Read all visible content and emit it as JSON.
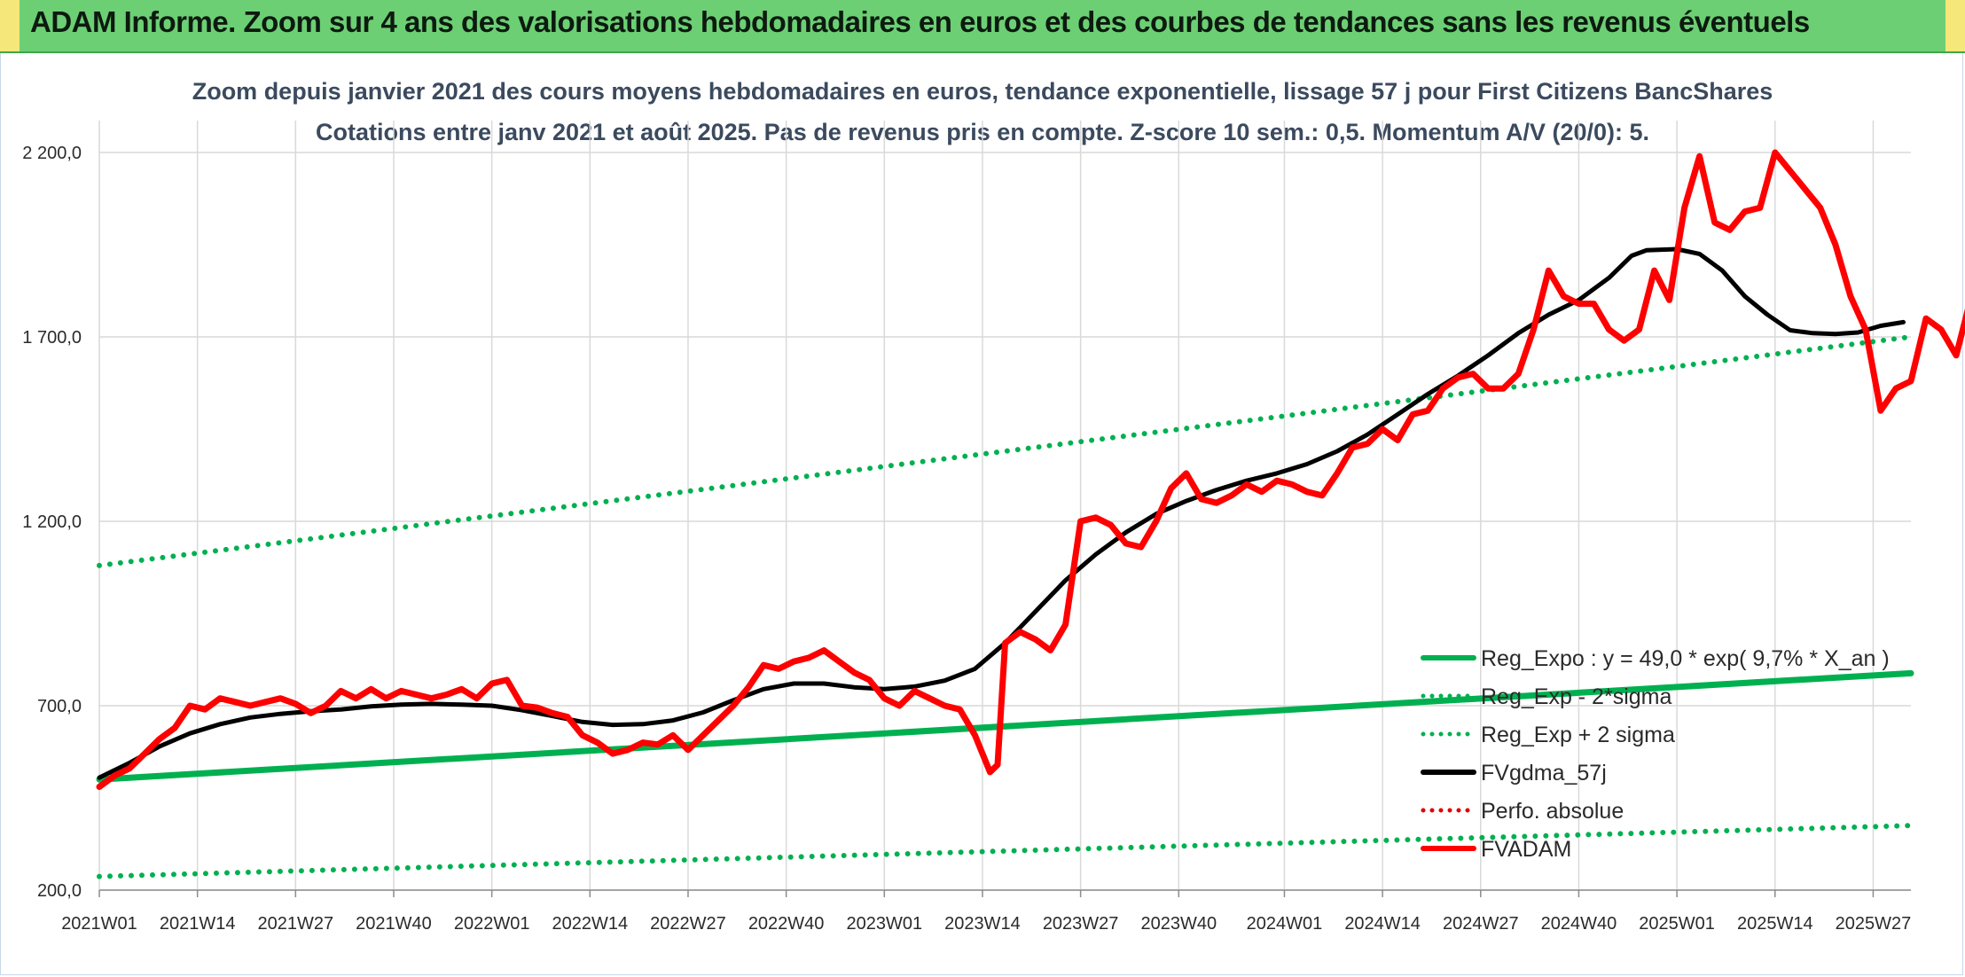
{
  "header": {
    "title": "ADAM Informe. Zoom sur 4 ans des valorisations hebdomadaires en euros et des courbes de tendances sans les revenus éventuels"
  },
  "chart_data": {
    "type": "line",
    "title": "Zoom depuis janvier 2021 des cours moyens hebdomadaires en euros, tendance exponentielle, lissage 57 j pour First Citizens BancShares",
    "subtitle": "Cotations entre janv 2021 et août 2025. Pas de revenus pris en compte. Z-score 10 sem.: 0,5. Momentum A/V (20/0): 5.",
    "xlabel": "",
    "ylabel": "",
    "ylim": [
      200,
      2200
    ],
    "y_ticks": [
      200,
      700,
      1200,
      1700,
      2200
    ],
    "y_tick_labels": [
      "200,0",
      "700,0",
      "1 200,0",
      "1 700,0",
      "2 200,0"
    ],
    "x_ticks": [
      0,
      13,
      26,
      39,
      52,
      65,
      78,
      91,
      104,
      117,
      130,
      143,
      157,
      170,
      183,
      196,
      209,
      222,
      235
    ],
    "x_tick_labels": [
      "2021W01",
      "2021W14",
      "2021W27",
      "2021W40",
      "2022W01",
      "2022W14",
      "2022W27",
      "2022W40",
      "2023W01",
      "2023W14",
      "2023W27",
      "2023W40",
      "2024W01",
      "2024W14",
      "2024W27",
      "2024W40",
      "2025W01",
      "2025W14",
      "2025W27"
    ],
    "xlim": [
      0,
      240
    ],
    "grid": "vertical and horizontal",
    "legend_position": "bottom-right",
    "series": [
      {
        "name": "Reg_Expo : y = 49,0 * exp( 9,7% *  X_an )",
        "color": "#00b050",
        "style": "solid",
        "points": [
          [
            0,
            500
          ],
          [
            240,
            788
          ]
        ]
      },
      {
        "name": "Reg_Exp - 2*sigma",
        "color": "#00b050",
        "style": "dotted",
        "points": [
          [
            0,
            237
          ],
          [
            240,
            375
          ]
        ]
      },
      {
        "name": "Reg_Exp + 2 sigma",
        "color": "#00b050",
        "style": "dotted",
        "points": [
          [
            0,
            1080
          ],
          [
            240,
            1700
          ]
        ]
      },
      {
        "name": "FVgdma_57j",
        "color": "#000000",
        "style": "solid",
        "points": [
          [
            0,
            505
          ],
          [
            4,
            545
          ],
          [
            8,
            590
          ],
          [
            12,
            625
          ],
          [
            16,
            650
          ],
          [
            20,
            668
          ],
          [
            24,
            678
          ],
          [
            28,
            685
          ],
          [
            32,
            690
          ],
          [
            36,
            698
          ],
          [
            40,
            703
          ],
          [
            44,
            705
          ],
          [
            48,
            703
          ],
          [
            52,
            700
          ],
          [
            56,
            688
          ],
          [
            60,
            672
          ],
          [
            64,
            656
          ],
          [
            68,
            648
          ],
          [
            72,
            650
          ],
          [
            76,
            660
          ],
          [
            80,
            682
          ],
          [
            84,
            715
          ],
          [
            88,
            745
          ],
          [
            92,
            760
          ],
          [
            96,
            760
          ],
          [
            100,
            750
          ],
          [
            104,
            745
          ],
          [
            108,
            752
          ],
          [
            112,
            768
          ],
          [
            116,
            800
          ],
          [
            120,
            870
          ],
          [
            124,
            955
          ],
          [
            128,
            1040
          ],
          [
            132,
            1110
          ],
          [
            136,
            1170
          ],
          [
            140,
            1220
          ],
          [
            144,
            1255
          ],
          [
            148,
            1285
          ],
          [
            152,
            1310
          ],
          [
            156,
            1330
          ],
          [
            160,
            1355
          ],
          [
            164,
            1390
          ],
          [
            168,
            1435
          ],
          [
            172,
            1490
          ],
          [
            176,
            1545
          ],
          [
            180,
            1595
          ],
          [
            184,
            1650
          ],
          [
            188,
            1710
          ],
          [
            192,
            1760
          ],
          [
            196,
            1800
          ],
          [
            200,
            1860
          ],
          [
            203,
            1920
          ],
          [
            205,
            1935
          ],
          [
            209,
            1938
          ],
          [
            212,
            1925
          ],
          [
            215,
            1880
          ],
          [
            218,
            1810
          ],
          [
            221,
            1760
          ],
          [
            224,
            1718
          ],
          [
            227,
            1710
          ],
          [
            230,
            1708
          ],
          [
            233,
            1712
          ],
          [
            236,
            1730
          ],
          [
            239,
            1740
          ]
        ]
      },
      {
        "name": "Perfo. absolue",
        "color": "#e00000",
        "style": "dotted",
        "points": []
      },
      {
        "name": "FVADAM",
        "color": "#ff0000",
        "style": "solid",
        "points": [
          [
            0,
            480
          ],
          [
            2,
            510
          ],
          [
            4,
            530
          ],
          [
            6,
            570
          ],
          [
            8,
            610
          ],
          [
            10,
            640
          ],
          [
            12,
            700
          ],
          [
            14,
            690
          ],
          [
            16,
            720
          ],
          [
            18,
            710
          ],
          [
            20,
            700
          ],
          [
            22,
            710
          ],
          [
            24,
            720
          ],
          [
            26,
            705
          ],
          [
            28,
            680
          ],
          [
            30,
            700
          ],
          [
            32,
            740
          ],
          [
            34,
            720
          ],
          [
            36,
            745
          ],
          [
            38,
            720
          ],
          [
            40,
            740
          ],
          [
            42,
            730
          ],
          [
            44,
            720
          ],
          [
            46,
            730
          ],
          [
            48,
            745
          ],
          [
            50,
            720
          ],
          [
            52,
            760
          ],
          [
            54,
            770
          ],
          [
            56,
            700
          ],
          [
            58,
            695
          ],
          [
            60,
            680
          ],
          [
            62,
            670
          ],
          [
            64,
            620
          ],
          [
            66,
            600
          ],
          [
            68,
            570
          ],
          [
            70,
            580
          ],
          [
            72,
            600
          ],
          [
            74,
            595
          ],
          [
            76,
            620
          ],
          [
            78,
            580
          ],
          [
            80,
            620
          ],
          [
            82,
            660
          ],
          [
            84,
            700
          ],
          [
            86,
            750
          ],
          [
            88,
            810
          ],
          [
            90,
            800
          ],
          [
            92,
            820
          ],
          [
            94,
            830
          ],
          [
            96,
            850
          ],
          [
            98,
            820
          ],
          [
            100,
            790
          ],
          [
            102,
            770
          ],
          [
            104,
            720
          ],
          [
            106,
            700
          ],
          [
            108,
            740
          ],
          [
            110,
            720
          ],
          [
            112,
            700
          ],
          [
            114,
            690
          ],
          [
            116,
            620
          ],
          [
            118,
            520
          ],
          [
            119,
            540
          ],
          [
            120,
            870
          ],
          [
            122,
            900
          ],
          [
            124,
            880
          ],
          [
            126,
            850
          ],
          [
            128,
            920
          ],
          [
            130,
            1200
          ],
          [
            132,
            1210
          ],
          [
            134,
            1190
          ],
          [
            136,
            1140
          ],
          [
            138,
            1130
          ],
          [
            140,
            1200
          ],
          [
            142,
            1290
          ],
          [
            144,
            1330
          ],
          [
            146,
            1260
          ],
          [
            148,
            1250
          ],
          [
            150,
            1270
          ],
          [
            152,
            1300
          ],
          [
            154,
            1280
          ],
          [
            156,
            1310
          ],
          [
            158,
            1300
          ],
          [
            160,
            1280
          ],
          [
            162,
            1270
          ],
          [
            164,
            1330
          ],
          [
            166,
            1400
          ],
          [
            168,
            1410
          ],
          [
            170,
            1450
          ],
          [
            172,
            1420
          ],
          [
            174,
            1490
          ],
          [
            176,
            1500
          ],
          [
            178,
            1560
          ],
          [
            180,
            1590
          ],
          [
            182,
            1600
          ],
          [
            184,
            1560
          ],
          [
            186,
            1560
          ],
          [
            188,
            1600
          ],
          [
            190,
            1720
          ],
          [
            192,
            1880
          ],
          [
            194,
            1810
          ],
          [
            196,
            1790
          ],
          [
            198,
            1790
          ],
          [
            200,
            1720
          ],
          [
            202,
            1690
          ],
          [
            204,
            1720
          ],
          [
            206,
            1880
          ],
          [
            208,
            1800
          ],
          [
            210,
            2050
          ],
          [
            212,
            2190
          ],
          [
            214,
            2010
          ],
          [
            216,
            1990
          ],
          [
            218,
            2040
          ],
          [
            220,
            2050
          ],
          [
            222,
            2200
          ],
          [
            224,
            2150
          ],
          [
            226,
            2100
          ],
          [
            228,
            2050
          ],
          [
            230,
            1950
          ],
          [
            232,
            1810
          ],
          [
            234,
            1720
          ],
          [
            236,
            1500
          ],
          [
            238,
            1560
          ],
          [
            240,
            1580
          ],
          [
            242,
            1750
          ],
          [
            244,
            1720
          ],
          [
            246,
            1650
          ],
          [
            248,
            1810
          ],
          [
            250,
            1830
          ],
          [
            252,
            1790
          ]
        ]
      }
    ]
  }
}
